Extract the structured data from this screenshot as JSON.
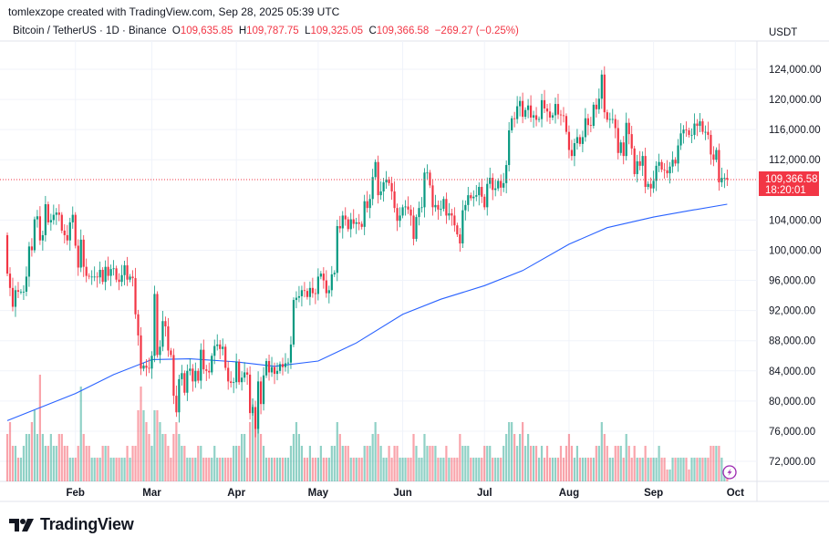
{
  "credit": "tomlexzope created with TradingView.com, Sep 28, 2025 05:39 UTC",
  "legend": {
    "symbol": "Bitcoin / TetherUS · 1D · Binance",
    "o_label": "O",
    "o": "109,635.85",
    "h_label": "H",
    "h": "109,787.75",
    "l_label": "L",
    "l": "109,325.05",
    "c_label": "C",
    "c": "109,366.58",
    "change": "−269.27 (−0.25%)"
  },
  "currency": "USDT",
  "logo_text": "TradingView",
  "current_price_label": "109,366.58",
  "countdown": "18:20:01",
  "colors": {
    "up": "#089981",
    "down": "#f23645",
    "sma": "#2962ff",
    "grid": "#f0f3fa"
  },
  "icons": {
    "replay": "lightning-icon",
    "logo": "tradingview-logo-icon"
  },
  "chart_data": {
    "type": "candlestick",
    "interval": "1D",
    "start_date": "2025-01-07",
    "unit": "thousand USDT",
    "ylim": [
      70000,
      127000
    ],
    "y_ticks": [
      "124,000.00",
      "120,000.00",
      "116,000.00",
      "112,000.00",
      "104,000.00",
      "100,000.00",
      "96,000.00",
      "92,000.00",
      "88,000.00",
      "84,000.00",
      "80,000.00",
      "76,000.00",
      "72,000.00"
    ],
    "y_tick_values": [
      124000,
      120000,
      116000,
      112000,
      104000,
      100000,
      96000,
      92000,
      88000,
      84000,
      80000,
      76000,
      72000
    ],
    "x_ticks": [
      {
        "label": "Feb",
        "date": "2025-02-01"
      },
      {
        "label": "Mar",
        "date": "2025-03-01"
      },
      {
        "label": "Apr",
        "date": "2025-04-01"
      },
      {
        "label": "May",
        "date": "2025-05-01"
      },
      {
        "label": "Jun",
        "date": "2025-06-01"
      },
      {
        "label": "Jul",
        "date": "2025-07-01"
      },
      {
        "label": "Aug",
        "date": "2025-08-01"
      },
      {
        "label": "Sep",
        "date": "2025-09-01"
      },
      {
        "label": "Oct",
        "date": "2025-10-01"
      }
    ],
    "first_open": 102.0,
    "closes": [
      96.9,
      95.0,
      92.5,
      94.7,
      94.5,
      94.5,
      94.5,
      96.5,
      100.5,
      100.0,
      104.1,
      104.5,
      101.3,
      102.0,
      106.1,
      103.7,
      104.0,
      104.7,
      105.0,
      104.7,
      102.6,
      102.0,
      101.3,
      103.7,
      104.7,
      100.6,
      97.7,
      101.4,
      97.8,
      96.6,
      96.5,
      96.5,
      96.5,
      96.4,
      97.4,
      95.8,
      97.8,
      96.6,
      97.5,
      97.6,
      96.1,
      95.8,
      96.7,
      98.0,
      96.1,
      96.5,
      96.3,
      91.5,
      88.7,
      84.3,
      84.7,
      84.4,
      84.3,
      86.0,
      94.2,
      86.1,
      87.2,
      90.6,
      89.9,
      86.7,
      86.1,
      80.7,
      78.5,
      82.9,
      83.7,
      81.1,
      84.0,
      84.3,
      82.6,
      84.0,
      82.7,
      86.8,
      84.2,
      84.0,
      83.8,
      86.0,
      87.3,
      87.5,
      86.9,
      87.2,
      84.4,
      82.6,
      82.4,
      82.5,
      85.2,
      82.5,
      83.1,
      83.8,
      83.5,
      78.4,
      79.2,
      76.3,
      82.6,
      79.6,
      83.4,
      85.3,
      83.8,
      84.5,
      83.6,
      84.0,
      84.9,
      84.5,
      85.0,
      85.1,
      87.5,
      93.4,
      93.7,
      93.9,
      94.7,
      94.6,
      93.8,
      95.0,
      94.3,
      94.2,
      96.5,
      96.9,
      96.0,
      94.3,
      94.7,
      96.8,
      97.0,
      103.2,
      102.9,
      104.6,
      104.1,
      102.8,
      104.1,
      103.5,
      103.7,
      103.5,
      103.1,
      106.5,
      105.6,
      106.8,
      109.7,
      111.7,
      107.3,
      107.8,
      109.0,
      109.4,
      108.9,
      107.8,
      105.6,
      103.9,
      104.6,
      105.7,
      105.8,
      105.4,
      104.6,
      101.5,
      104.4,
      105.6,
      105.7,
      110.3,
      110.3,
      108.6,
      105.7,
      106.0,
      105.4,
      105.5,
      106.8,
      104.6,
      104.9,
      104.6,
      103.3,
      102.1,
      100.9,
      105.3,
      106.0,
      107.3,
      106.9,
      107.1,
      107.3,
      108.4,
      107.1,
      105.7,
      108.8,
      109.6,
      108.0,
      108.2,
      109.2,
      108.3,
      108.9,
      111.3,
      115.9,
      117.5,
      117.4,
      119.1,
      119.8,
      117.7,
      118.6,
      119.2,
      117.6,
      117.9,
      117.3,
      117.4,
      119.9,
      118.8,
      118.4,
      117.6,
      117.9,
      119.4,
      118.0,
      117.9,
      117.8,
      115.7,
      113.3,
      112.5,
      114.2,
      115.0,
      114.1,
      115.0,
      117.5,
      116.6,
      116.5,
      119.3,
      118.7,
      120.1,
      123.3,
      118.3,
      117.3,
      117.4,
      117.4,
      116.2,
      112.9,
      114.3,
      112.5,
      116.9,
      115.4,
      113.5,
      110.1,
      111.8,
      111.2,
      112.5,
      108.4,
      108.8,
      108.2,
      109.2,
      111.2,
      111.7,
      110.7,
      110.6,
      110.2,
      111.1,
      112.0,
      111.5,
      113.9,
      115.5,
      116.0,
      115.9,
      115.3,
      115.3,
      116.8,
      116.5,
      117.1,
      115.7,
      115.7,
      115.3,
      112.7,
      112.0,
      113.3,
      109.0,
      109.6,
      109.6,
      109.37
    ],
    "volumes": [
      4,
      5,
      3,
      3,
      2,
      2,
      3,
      4,
      4,
      5,
      6,
      4,
      9,
      4,
      3,
      3,
      4,
      3,
      3,
      4,
      4,
      3,
      3,
      2,
      2,
      2,
      3,
      8,
      4,
      3,
      3,
      2,
      2,
      2,
      2,
      3,
      3,
      3,
      2,
      2,
      2,
      2,
      2,
      2,
      3,
      2,
      3,
      3,
      6,
      8,
      6,
      5,
      4,
      3,
      6,
      6,
      5,
      4,
      4,
      3,
      2,
      4,
      5,
      4,
      3,
      3,
      2,
      2,
      2,
      2,
      3,
      3,
      2,
      2,
      2,
      2,
      3,
      2,
      2,
      2,
      2,
      2,
      2,
      3,
      3,
      3,
      4,
      4,
      2,
      5,
      7,
      6,
      6,
      4,
      3,
      2,
      2,
      2,
      2,
      2,
      2,
      2,
      2,
      2,
      3,
      4,
      5,
      4,
      3,
      2,
      2,
      3,
      2,
      2,
      2,
      3,
      2,
      2,
      2,
      3,
      3,
      5,
      4,
      3,
      3,
      3,
      2,
      2,
      2,
      2,
      2,
      3,
      3,
      3,
      4,
      5,
      4,
      3,
      2,
      2,
      3,
      2,
      3,
      3,
      2,
      2,
      2,
      2,
      2,
      4,
      3,
      2,
      2,
      4,
      3,
      3,
      3,
      3,
      2,
      2,
      2,
      3,
      2,
      2,
      2,
      2,
      4,
      3,
      3,
      3,
      2,
      2,
      2,
      2,
      2,
      3,
      3,
      3,
      2,
      2,
      2,
      2,
      3,
      4,
      5,
      5,
      4,
      3,
      4,
      5,
      3,
      4,
      3,
      3,
      3,
      2,
      3,
      2,
      3,
      2,
      2,
      2,
      2,
      3,
      2,
      3,
      4,
      3,
      2,
      3,
      2,
      2,
      2,
      2,
      2,
      2,
      3,
      3,
      5,
      4,
      3,
      2,
      2,
      3,
      3,
      3,
      2,
      4,
      3,
      2,
      3,
      2,
      2,
      2,
      3,
      2,
      2,
      2,
      2,
      3,
      2,
      2,
      1,
      1,
      2,
      2,
      2,
      2,
      2,
      2,
      1,
      2,
      2,
      2,
      2,
      2,
      2,
      2,
      3,
      3,
      3,
      3,
      2,
      1,
      1
    ],
    "sma": [
      [
        "2025-01-07",
        77.4
      ],
      [
        "2025-02-01",
        81.0
      ],
      [
        "2025-02-15",
        83.5
      ],
      [
        "2025-03-01",
        85.5
      ],
      [
        "2025-03-15",
        85.6
      ],
      [
        "2025-04-01",
        85.2
      ],
      [
        "2025-04-15",
        84.6
      ],
      [
        "2025-05-01",
        85.3
      ],
      [
        "2025-05-15",
        87.7
      ],
      [
        "2025-06-01",
        91.5
      ],
      [
        "2025-06-15",
        93.5
      ],
      [
        "2025-07-01",
        95.3
      ],
      [
        "2025-07-15",
        97.3
      ],
      [
        "2025-08-01",
        100.8
      ],
      [
        "2025-08-15",
        103.0
      ],
      [
        "2025-09-01",
        104.4
      ],
      [
        "2025-09-15",
        105.3
      ],
      [
        "2025-09-28",
        106.1
      ]
    ],
    "grid": true
  }
}
